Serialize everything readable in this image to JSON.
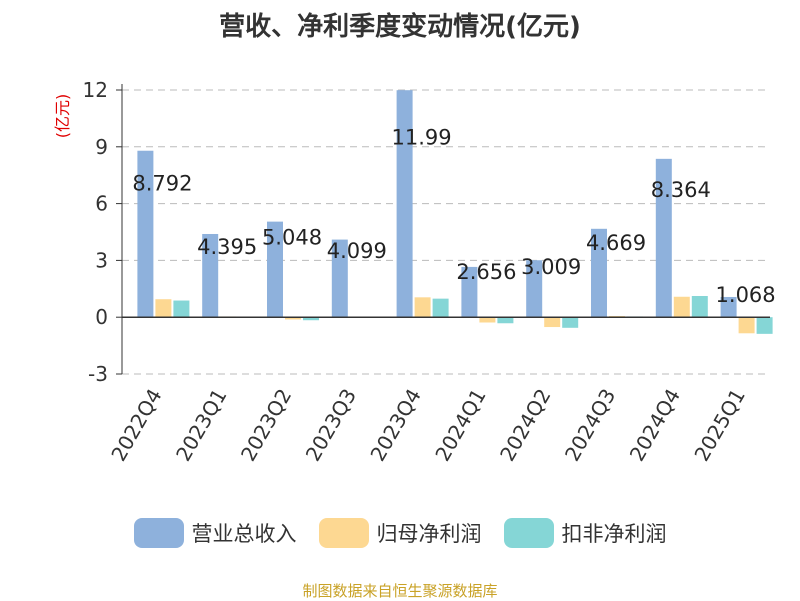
{
  "chart_data": {
    "type": "bar",
    "title": "营收、净利季度变动情况(亿元)",
    "ylabel": "(亿元)",
    "ylim": [
      -3,
      12
    ],
    "yticks": [
      12,
      9,
      6,
      3,
      0,
      -3
    ],
    "grid": true,
    "legend_position": "bottom",
    "categories": [
      "2022Q4",
      "2023Q1",
      "2023Q2",
      "2023Q3",
      "2023Q4",
      "2024Q1",
      "2024Q2",
      "2024Q3",
      "2024Q4",
      "2025Q1"
    ],
    "series": [
      {
        "name": "营业总收入",
        "color": "#8eb1dc",
        "values": [
          8.792,
          4.395,
          5.048,
          4.099,
          11.99,
          2.656,
          3.009,
          4.669,
          8.364,
          1.068
        ],
        "labels": [
          "8.792",
          "4.395",
          "5.048",
          "4.099",
          "11.99",
          "2.656",
          "3.009",
          "4.669",
          "8.364",
          "1.068"
        ]
      },
      {
        "name": "归母净利润",
        "color": "#fdd892",
        "values": [
          0.95,
          0.04,
          -0.12,
          0.03,
          1.05,
          -0.28,
          -0.52,
          0.06,
          1.08,
          -0.85
        ]
      },
      {
        "name": "扣非净利润",
        "color": "#85d6d6",
        "values": [
          0.88,
          0.03,
          -0.16,
          0.02,
          0.98,
          -0.32,
          -0.56,
          0.04,
          1.12,
          -0.88
        ]
      }
    ]
  },
  "source_note": "制图数据来自恒生聚源数据库"
}
